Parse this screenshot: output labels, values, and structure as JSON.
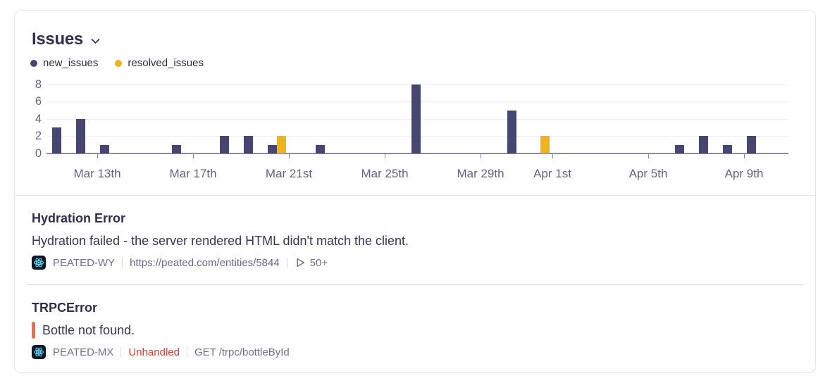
{
  "header": {
    "title": "Issues"
  },
  "legend": [
    {
      "label": "new_issues",
      "color": "#474572"
    },
    {
      "label": "resolved_issues",
      "color": "#efb320"
    }
  ],
  "chart_data": {
    "type": "bar",
    "title": "Issues",
    "xlabel": "",
    "ylabel": "",
    "legend_position": "top-left",
    "grid": "horizontal-faint",
    "y_ticks": [
      0,
      2,
      4,
      6,
      8
    ],
    "ylim": [
      0,
      8.6
    ],
    "x_start_date": "Mar 11",
    "x_end_date": "Apr 11",
    "x_ticks": [
      {
        "label": "Mar 13th",
        "day": 2
      },
      {
        "label": "Mar 17th",
        "day": 6
      },
      {
        "label": "Mar 21st",
        "day": 10
      },
      {
        "label": "Mar 25th",
        "day": 14
      },
      {
        "label": "Mar 29th",
        "day": 18
      },
      {
        "label": "Apr 1st",
        "day": 21
      },
      {
        "label": "Apr 5th",
        "day": 25
      },
      {
        "label": "Apr 9th",
        "day": 29
      }
    ],
    "series": [
      {
        "name": "new_issues",
        "color": "#474572",
        "points": [
          {
            "date": "Mar 11",
            "day": 0,
            "value": 3
          },
          {
            "date": "Mar 12",
            "day": 1,
            "value": 4
          },
          {
            "date": "Mar 13",
            "day": 2,
            "value": 1
          },
          {
            "date": "Mar 16",
            "day": 5,
            "value": 1
          },
          {
            "date": "Mar 18",
            "day": 7,
            "value": 2
          },
          {
            "date": "Mar 19",
            "day": 8,
            "value": 2
          },
          {
            "date": "Mar 20",
            "day": 9,
            "value": 1
          },
          {
            "date": "Mar 22",
            "day": 11,
            "value": 1
          },
          {
            "date": "Mar 26",
            "day": 15,
            "value": 8
          },
          {
            "date": "Mar 30",
            "day": 19,
            "value": 5
          },
          {
            "date": "Apr 6",
            "day": 26,
            "value": 1
          },
          {
            "date": "Apr 7",
            "day": 27,
            "value": 2
          },
          {
            "date": "Apr 8",
            "day": 28,
            "value": 1
          },
          {
            "date": "Apr 9",
            "day": 29,
            "value": 2
          }
        ]
      },
      {
        "name": "resolved_issues",
        "color": "#efb320",
        "points": [
          {
            "date": "Mar 20",
            "day": 9,
            "value": 2
          },
          {
            "date": "Mar 31",
            "day": 20,
            "value": 2
          }
        ]
      }
    ]
  },
  "issues": [
    {
      "title": "Hydration Error",
      "message": "Hydration failed - the server rendered HTML didn't match the client.",
      "project": "PEATED-WY",
      "link": "https://peated.com/entities/5844",
      "replay_count": "50+"
    },
    {
      "title": "TRPCError",
      "message": "Bottle not found.",
      "project": "PEATED-MX",
      "status": "Unhandled",
      "request": "GET /trpc/bottleById"
    }
  ],
  "colors": {
    "unhandled_red": "#e03a2c",
    "marker_orange": "#ef6c48",
    "react_cyan": "#58d1f5",
    "axis": "#8d87a1"
  }
}
